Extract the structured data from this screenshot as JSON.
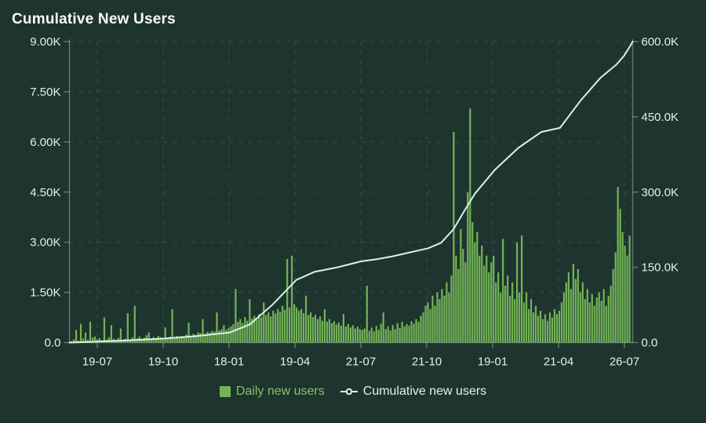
{
  "title": "Cumulative New Users",
  "colors": {
    "background": "#1e342e",
    "bar": "#73b457",
    "line": "#d8f3e7",
    "axis_text": "#e8eeeb",
    "axis_line": "rgba(217,231,224,0.38)",
    "grid": "rgba(217,231,224,0.15)",
    "title_text": "#f7faf8",
    "legend_daily_text": "#87c168",
    "legend_cumulative_text": "#dff4ec"
  },
  "legend": [
    {
      "label": "Daily new users",
      "marker": "square"
    },
    {
      "label": "Cumulative new users",
      "marker": "line-circle"
    }
  ],
  "chart_data": {
    "type": "bar",
    "title": "Cumulative New Users",
    "grid": "dashed",
    "legend_position": "bottom-center",
    "x_tick_labels": [
      "19-07",
      "19-10",
      "18-01",
      "19-04",
      "21-07",
      "21-10",
      "19-01",
      "21-04",
      "26-07"
    ],
    "left_axis": {
      "series": "Daily new users",
      "tick_labels": [
        "0.0",
        "1.50K",
        "3.00K",
        "4.50K",
        "6.00K",
        "7.50K",
        "9.00K"
      ],
      "range": [
        0,
        9000
      ]
    },
    "right_axis": {
      "series": "Cumulative new users",
      "tick_labels": [
        "0.0",
        "150.0K",
        "300.0K",
        "450.0K",
        "600.0K"
      ],
      "range": [
        0,
        600000
      ]
    },
    "series": [
      {
        "name": "Daily new users",
        "type": "bar",
        "axis": "left",
        "unit": "users per day",
        "values": [
          40,
          90,
          380,
          60,
          560,
          120,
          300,
          80,
          620,
          150,
          180,
          100,
          130,
          70,
          750,
          90,
          160,
          520,
          110,
          80,
          140,
          420,
          90,
          120,
          880,
          100,
          150,
          1100,
          120,
          180,
          90,
          150,
          220,
          300,
          110,
          170,
          130,
          200,
          160,
          110,
          450,
          140,
          180,
          1000,
          150,
          200,
          160,
          200,
          180,
          240,
          600,
          210,
          260,
          230,
          300,
          280,
          700,
          260,
          320,
          300,
          350,
          330,
          900,
          360,
          400,
          520,
          380,
          430,
          480,
          550,
          1600,
          620,
          700,
          580,
          760,
          650,
          1300,
          720,
          800,
          690,
          850,
          760,
          1200,
          820,
          900,
          780,
          950,
          870,
          1000,
          920,
          1100,
          980,
          2500,
          1050,
          2600,
          1150,
          1050,
          950,
          1000,
          880,
          1400,
          820,
          900,
          760,
          830,
          700,
          780,
          650,
          1000,
          620,
          700,
          580,
          640,
          540,
          600,
          500,
          850,
          480,
          560,
          450,
          520,
          420,
          480,
          400,
          380,
          420,
          1700,
          350,
          450,
          330,
          500,
          380,
          560,
          900,
          400,
          480,
          360,
          520,
          400,
          580,
          440,
          620,
          480,
          550,
          500,
          640,
          560,
          700,
          620,
          800,
          900,
          1100,
          1200,
          1000,
          1400,
          1100,
          1500,
          1300,
          1600,
          1400,
          1800,
          1500,
          2000,
          6300,
          2600,
          2200,
          3400,
          2800,
          2400,
          4500,
          7000,
          3600,
          3000,
          3300,
          2600,
          2900,
          2300,
          2600,
          2100,
          2400,
          2600,
          1800,
          2100,
          1500,
          3100,
          1700,
          2000,
          1400,
          1800,
          1300,
          3000,
          1500,
          3200,
          1200,
          1500,
          1000,
          1300,
          900,
          1100,
          800,
          950,
          700,
          850,
          650,
          900,
          750,
          1000,
          850,
          950,
          1200,
          1500,
          1800,
          2100,
          1600,
          2350,
          1900,
          2200,
          1500,
          1800,
          1300,
          1600,
          1200,
          1450,
          1100,
          1350,
          1500,
          1250,
          1600,
          1100,
          1400,
          1700,
          2200,
          2700,
          4650,
          4000,
          3300,
          2900,
          2600,
          3200
        ]
      },
      {
        "name": "Cumulative new users",
        "type": "line",
        "axis": "right",
        "unit": "users (thousands)",
        "points": [
          [
            0.0,
            0
          ],
          [
            0.03,
            1
          ],
          [
            0.052,
            2
          ],
          [
            0.1,
            4
          ],
          [
            0.169,
            8
          ],
          [
            0.226,
            13
          ],
          [
            0.285,
            20
          ],
          [
            0.32,
            36
          ],
          [
            0.36,
            75
          ],
          [
            0.403,
            125
          ],
          [
            0.435,
            141
          ],
          [
            0.476,
            150
          ],
          [
            0.518,
            162
          ],
          [
            0.545,
            166
          ],
          [
            0.574,
            172
          ],
          [
            0.637,
            188
          ],
          [
            0.66,
            199
          ],
          [
            0.682,
            226
          ],
          [
            0.702,
            264
          ],
          [
            0.72,
            297
          ],
          [
            0.755,
            344
          ],
          [
            0.797,
            388
          ],
          [
            0.838,
            420
          ],
          [
            0.871,
            428
          ],
          [
            0.908,
            483
          ],
          [
            0.943,
            528
          ],
          [
            0.971,
            554
          ],
          [
            0.985,
            572
          ],
          [
            0.996,
            592
          ],
          [
            1.0,
            600
          ]
        ]
      }
    ]
  }
}
